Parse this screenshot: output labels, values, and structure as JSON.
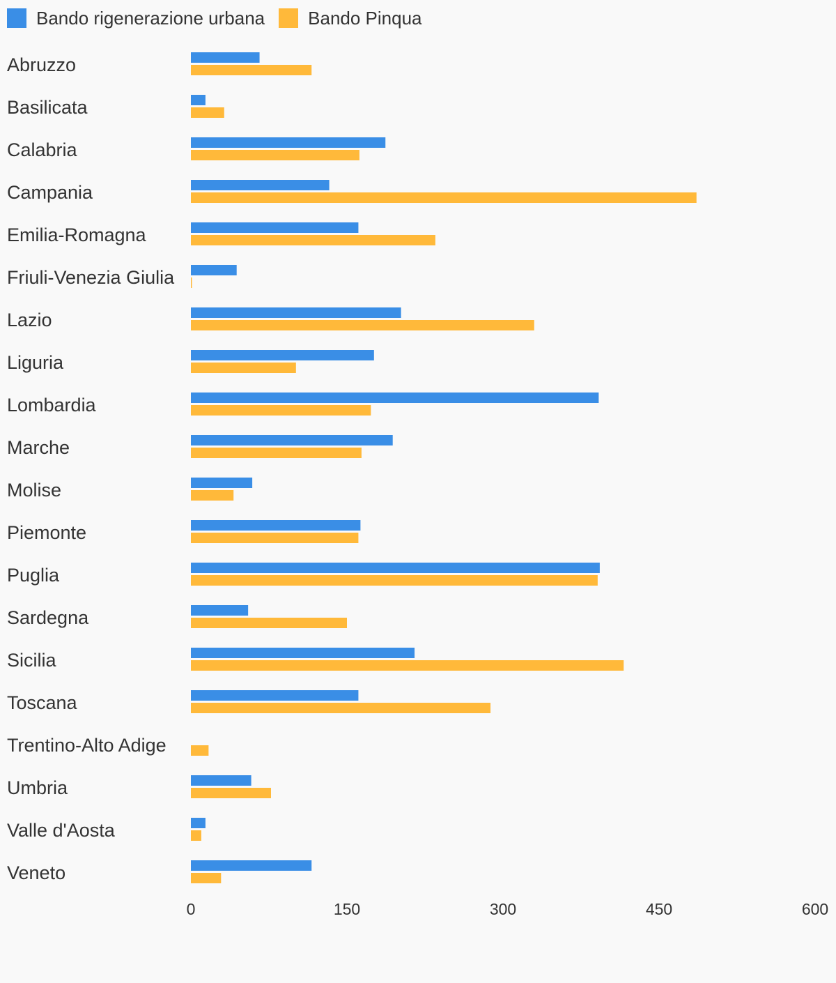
{
  "chart_data": {
    "type": "bar",
    "orientation": "horizontal",
    "categories": [
      "Abruzzo",
      "Basilicata",
      "Calabria",
      "Campania",
      "Emilia-Romagna",
      "Friuli-Venezia Giulia",
      "Lazio",
      "Liguria",
      "Lombardia",
      "Marche",
      "Molise",
      "Piemonte",
      "Puglia",
      "Sardegna",
      "Sicilia",
      "Toscana",
      "Trentino-Alto Adige",
      "Umbria",
      "Valle d'Aosta",
      "Veneto"
    ],
    "series": [
      {
        "name": "Bando rigenerazione urbana",
        "color": "#3a8ee6",
        "values": [
          66,
          14,
          187,
          133,
          161,
          44,
          202,
          176,
          392,
          194,
          59,
          163,
          393,
          55,
          215,
          161,
          0,
          58,
          14,
          116
        ]
      },
      {
        "name": "Bando Pinqua",
        "color": "#ffb93a",
        "values": [
          116,
          32,
          162,
          486,
          235,
          1,
          330,
          101,
          173,
          164,
          41,
          161,
          391,
          150,
          416,
          288,
          17,
          77,
          10,
          29
        ]
      }
    ],
    "xlim": [
      0,
      600
    ],
    "xticks": [
      "0",
      "150",
      "300",
      "450",
      "600"
    ],
    "title": "",
    "xlabel": "",
    "ylabel": "",
    "legend_position": "top-left",
    "grid": false
  }
}
